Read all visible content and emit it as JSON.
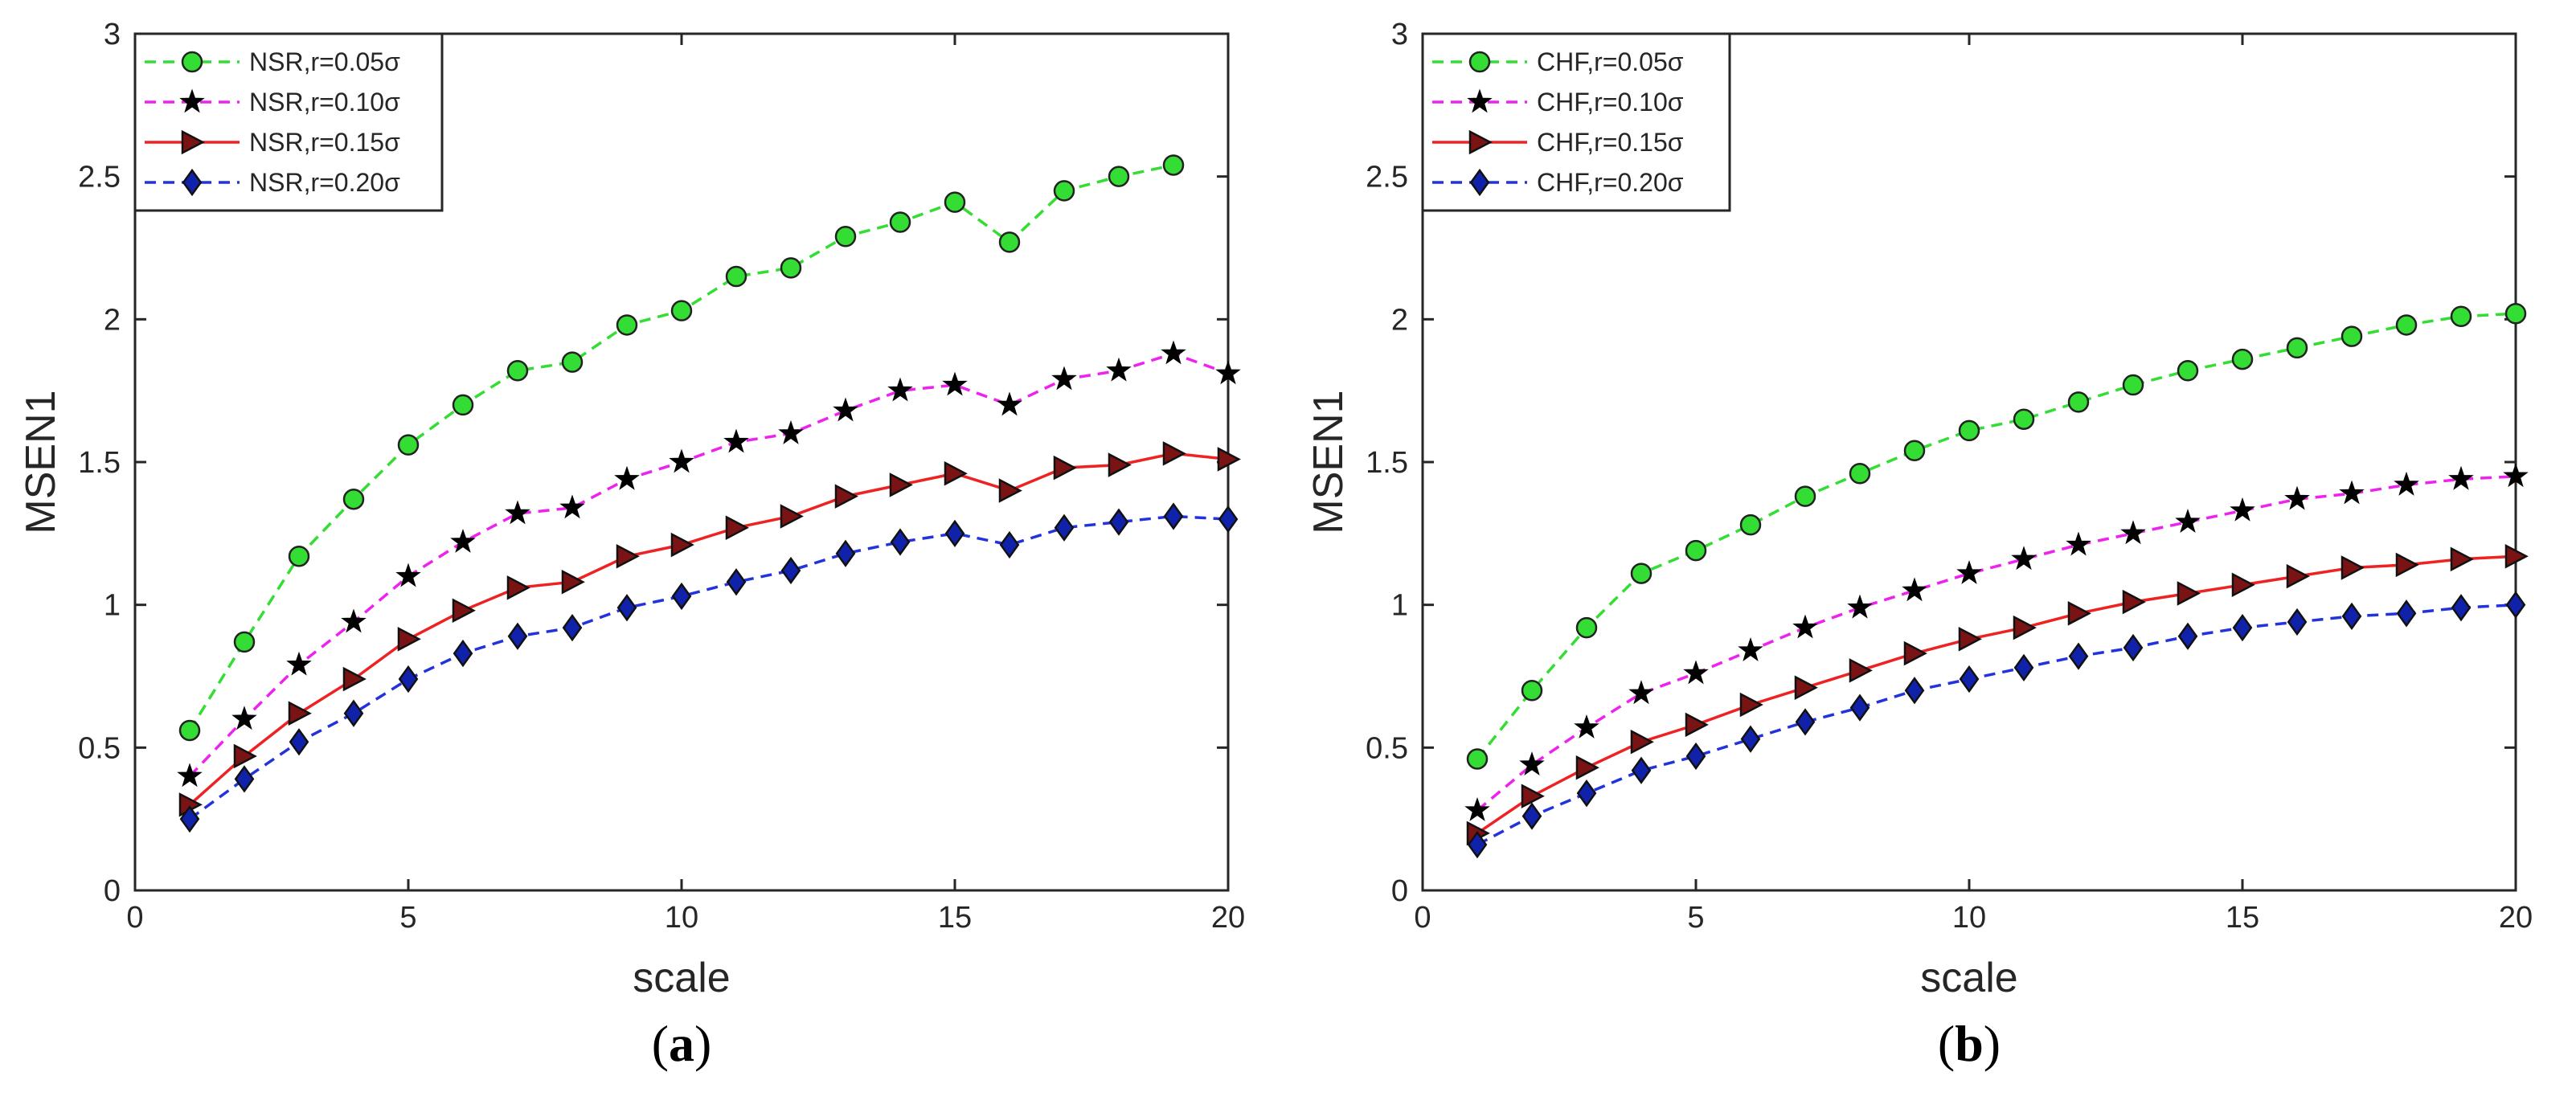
{
  "chart_data": [
    {
      "type": "line",
      "panel_label": "a",
      "title": "",
      "xlabel": "scale",
      "ylabel": "MSEN1",
      "xlim": [
        0,
        20
      ],
      "ylim": [
        0,
        3
      ],
      "xticks": [
        0,
        5,
        10,
        15,
        20
      ],
      "yticks": [
        0,
        0.5,
        1,
        1.5,
        2,
        2.5,
        3
      ],
      "ytick_labels": [
        "0",
        "0.5",
        "1",
        "1.5",
        "2",
        "2.5",
        "3"
      ],
      "grid": false,
      "legend_position": "top-left",
      "x": [
        1,
        2,
        3,
        4,
        5,
        6,
        7,
        8,
        9,
        10,
        11,
        12,
        13,
        14,
        15,
        16,
        17,
        18,
        19,
        20
      ],
      "series": [
        {
          "name": "NSR,r=0.05σ",
          "color": "#33dd33",
          "marker": "circle",
          "marker_fill": "#33dd33",
          "dash": "dashed",
          "values": [
            0.56,
            0.87,
            1.17,
            1.37,
            1.56,
            1.7,
            1.82,
            1.85,
            1.98,
            2.03,
            2.15,
            2.18,
            2.29,
            2.34,
            2.41,
            2.27,
            2.45,
            2.5,
            2.54,
            null
          ]
        },
        {
          "name": "NSR,r=0.10σ",
          "color": "#ee22ee",
          "marker": "star",
          "marker_fill": "#000000",
          "dash": "dashed",
          "values": [
            0.4,
            0.6,
            0.79,
            0.94,
            1.1,
            1.22,
            1.32,
            1.34,
            1.44,
            1.5,
            1.57,
            1.6,
            1.68,
            1.75,
            1.77,
            1.7,
            1.79,
            1.82,
            1.88,
            1.81
          ]
        },
        {
          "name": "NSR,r=0.15σ",
          "color": "#ee2222",
          "marker": "triangle-right",
          "marker_fill": "#7a1414",
          "dash": "solid",
          "values": [
            0.3,
            0.47,
            0.62,
            0.74,
            0.88,
            0.98,
            1.06,
            1.08,
            1.17,
            1.21,
            1.27,
            1.31,
            1.38,
            1.42,
            1.46,
            1.4,
            1.48,
            1.49,
            1.53,
            1.51
          ]
        },
        {
          "name": "NSR,r=0.20σ",
          "color": "#2233dd",
          "marker": "diamond",
          "marker_fill": "#1122aa",
          "dash": "dashed",
          "values": [
            0.25,
            0.39,
            0.52,
            0.62,
            0.74,
            0.83,
            0.89,
            0.92,
            0.99,
            1.03,
            1.08,
            1.12,
            1.18,
            1.22,
            1.25,
            1.21,
            1.27,
            1.29,
            1.31,
            1.3
          ]
        }
      ]
    },
    {
      "type": "line",
      "panel_label": "b",
      "title": "",
      "xlabel": "scale",
      "ylabel": "MSEN1",
      "xlim": [
        0,
        20
      ],
      "ylim": [
        0,
        3
      ],
      "xticks": [
        0,
        5,
        10,
        15,
        20
      ],
      "yticks": [
        0,
        0.5,
        1,
        1.5,
        2,
        2.5,
        3
      ],
      "ytick_labels": [
        "0",
        "0.5",
        "1",
        "1.5",
        "2",
        "2.5",
        "3"
      ],
      "grid": false,
      "legend_position": "top-left",
      "x": [
        1,
        2,
        3,
        4,
        5,
        6,
        7,
        8,
        9,
        10,
        11,
        12,
        13,
        14,
        15,
        16,
        17,
        18,
        19,
        20
      ],
      "series": [
        {
          "name": "CHF,r=0.05σ",
          "color": "#33dd33",
          "marker": "circle",
          "marker_fill": "#33dd33",
          "dash": "dashed",
          "values": [
            0.46,
            0.7,
            0.92,
            1.11,
            1.19,
            1.28,
            1.38,
            1.46,
            1.54,
            1.61,
            1.65,
            1.71,
            1.77,
            1.82,
            1.86,
            1.9,
            1.94,
            1.98,
            2.01,
            2.02
          ]
        },
        {
          "name": "CHF,r=0.10σ",
          "color": "#ee22ee",
          "marker": "star",
          "marker_fill": "#000000",
          "dash": "dashed",
          "values": [
            0.28,
            0.44,
            0.57,
            0.69,
            0.76,
            0.84,
            0.92,
            0.99,
            1.05,
            1.11,
            1.16,
            1.21,
            1.25,
            1.29,
            1.33,
            1.37,
            1.39,
            1.42,
            1.44,
            1.45
          ]
        },
        {
          "name": "CHF,r=0.15σ",
          "color": "#ee2222",
          "marker": "triangle-right",
          "marker_fill": "#7a1414",
          "dash": "solid",
          "values": [
            0.2,
            0.33,
            0.43,
            0.52,
            0.58,
            0.65,
            0.71,
            0.77,
            0.83,
            0.88,
            0.92,
            0.97,
            1.01,
            1.04,
            1.07,
            1.1,
            1.13,
            1.14,
            1.16,
            1.17
          ]
        },
        {
          "name": "CHF,r=0.20σ",
          "color": "#2233dd",
          "marker": "diamond",
          "marker_fill": "#1122aa",
          "dash": "dashed",
          "values": [
            0.16,
            0.26,
            0.34,
            0.42,
            0.47,
            0.53,
            0.59,
            0.64,
            0.7,
            0.74,
            0.78,
            0.82,
            0.85,
            0.89,
            0.92,
            0.94,
            0.96,
            0.97,
            0.99,
            1.0
          ]
        }
      ]
    }
  ]
}
